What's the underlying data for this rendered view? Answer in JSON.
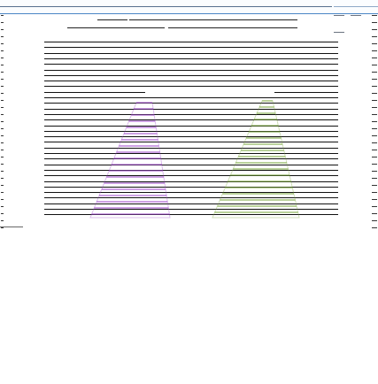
{
  "window": {
    "title": "",
    "controls": [
      "minimize-icon",
      "maximize-icon",
      "close-icon"
    ]
  },
  "header": {
    "breadcrumb": ""
  },
  "document": {
    "line_count": 32,
    "row_labels": [
      "",
      "",
      "",
      "",
      "",
      "",
      "",
      "",
      "",
      "",
      "",
      "",
      "",
      "",
      "",
      "",
      ""
    ]
  },
  "chart_data": {
    "type": "area",
    "series": [
      {
        "color": "#9b43c8"
      },
      {
        "color": "#75a437"
      }
    ]
  },
  "colors": {
    "accent": "#4a86c5",
    "text": "#111111",
    "purple": "#9b43c8",
    "green": "#75a437"
  }
}
